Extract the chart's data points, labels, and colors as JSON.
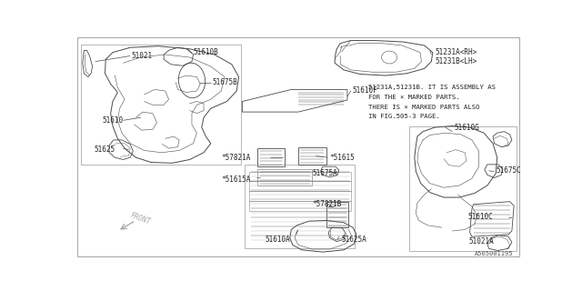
{
  "bg_color": "#ffffff",
  "lc": "#4a4a4a",
  "fig_id": "A505001195",
  "note_lines": [
    "51231A,51231B. IT IS ASSEMBLY AS",
    "FOR THE × MARKED PARTS.",
    "THERE IS × MARKED PARTS ALSO",
    "IN FIG.505-3 PAGE."
  ]
}
